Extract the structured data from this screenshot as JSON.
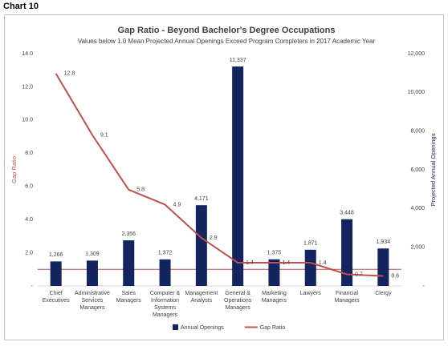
{
  "page_label": "Chart 10",
  "chart_data": {
    "type": "bar-line",
    "title": "Gap Ratio - Beyond Bachelor's Degree Occupations",
    "subtitle": "Values below 1.0 Mean Projected Annual Openings Exceed Program Completers in 2017 Academic Year",
    "y_label": "Gap Ratio",
    "y2_label": "Projected Annual Openings",
    "categories": [
      "Chief\nExecutives",
      "Administrative\nServices\nManagers",
      "Sales\nManagers",
      "Computer &\nInformation\nSystems\nManagers",
      "Management\nAnalysts",
      "General &\nOperations\nManagers",
      "Marketing\nManagers",
      "Lawyers",
      "Financial\nManagers",
      "Clergy"
    ],
    "series": [
      {
        "name": "Annual Openings",
        "kind": "bar",
        "axis": "y2",
        "color": "#14245e",
        "values": [
          1266,
          1309,
          2356,
          1372,
          4171,
          11337,
          1375,
          1871,
          3448,
          1934
        ],
        "value_labels": [
          "1,266",
          "1,309",
          "2,356",
          "1,372",
          "4,171",
          "11,337",
          "1,375",
          "1,871",
          "3,448",
          "1,934"
        ]
      },
      {
        "name": "Gap Ratio",
        "kind": "line",
        "color": "#c0504d",
        "values": [
          12.8,
          9.1,
          5.8,
          4.9,
          2.9,
          1.4,
          1.4,
          1.4,
          0.7,
          0.6
        ]
      }
    ],
    "reference_line": 1,
    "ylim": [
      0,
      14
    ],
    "yticks": [
      {
        "value": 0,
        "label": "-"
      },
      {
        "value": 2,
        "label": "2.0"
      },
      {
        "value": 4,
        "label": "4.0"
      },
      {
        "value": 6,
        "label": "6.0"
      },
      {
        "value": 8,
        "label": "8.0"
      },
      {
        "value": 10,
        "label": "10.0"
      },
      {
        "value": 12,
        "label": "12.0"
      },
      {
        "value": 14,
        "label": "14.0"
      }
    ],
    "y2lim": [
      0,
      12000
    ],
    "y2ticks": [
      {
        "value": 0,
        "label": "-"
      },
      {
        "value": 2000,
        "label": "2,000"
      },
      {
        "value": 4000,
        "label": "4,000"
      },
      {
        "value": 6000,
        "label": "6,000"
      },
      {
        "value": 8000,
        "label": "8,000"
      },
      {
        "value": 10000,
        "label": "10,000"
      },
      {
        "value": 12000,
        "label": "12,000"
      }
    ],
    "legend": "bottom"
  }
}
